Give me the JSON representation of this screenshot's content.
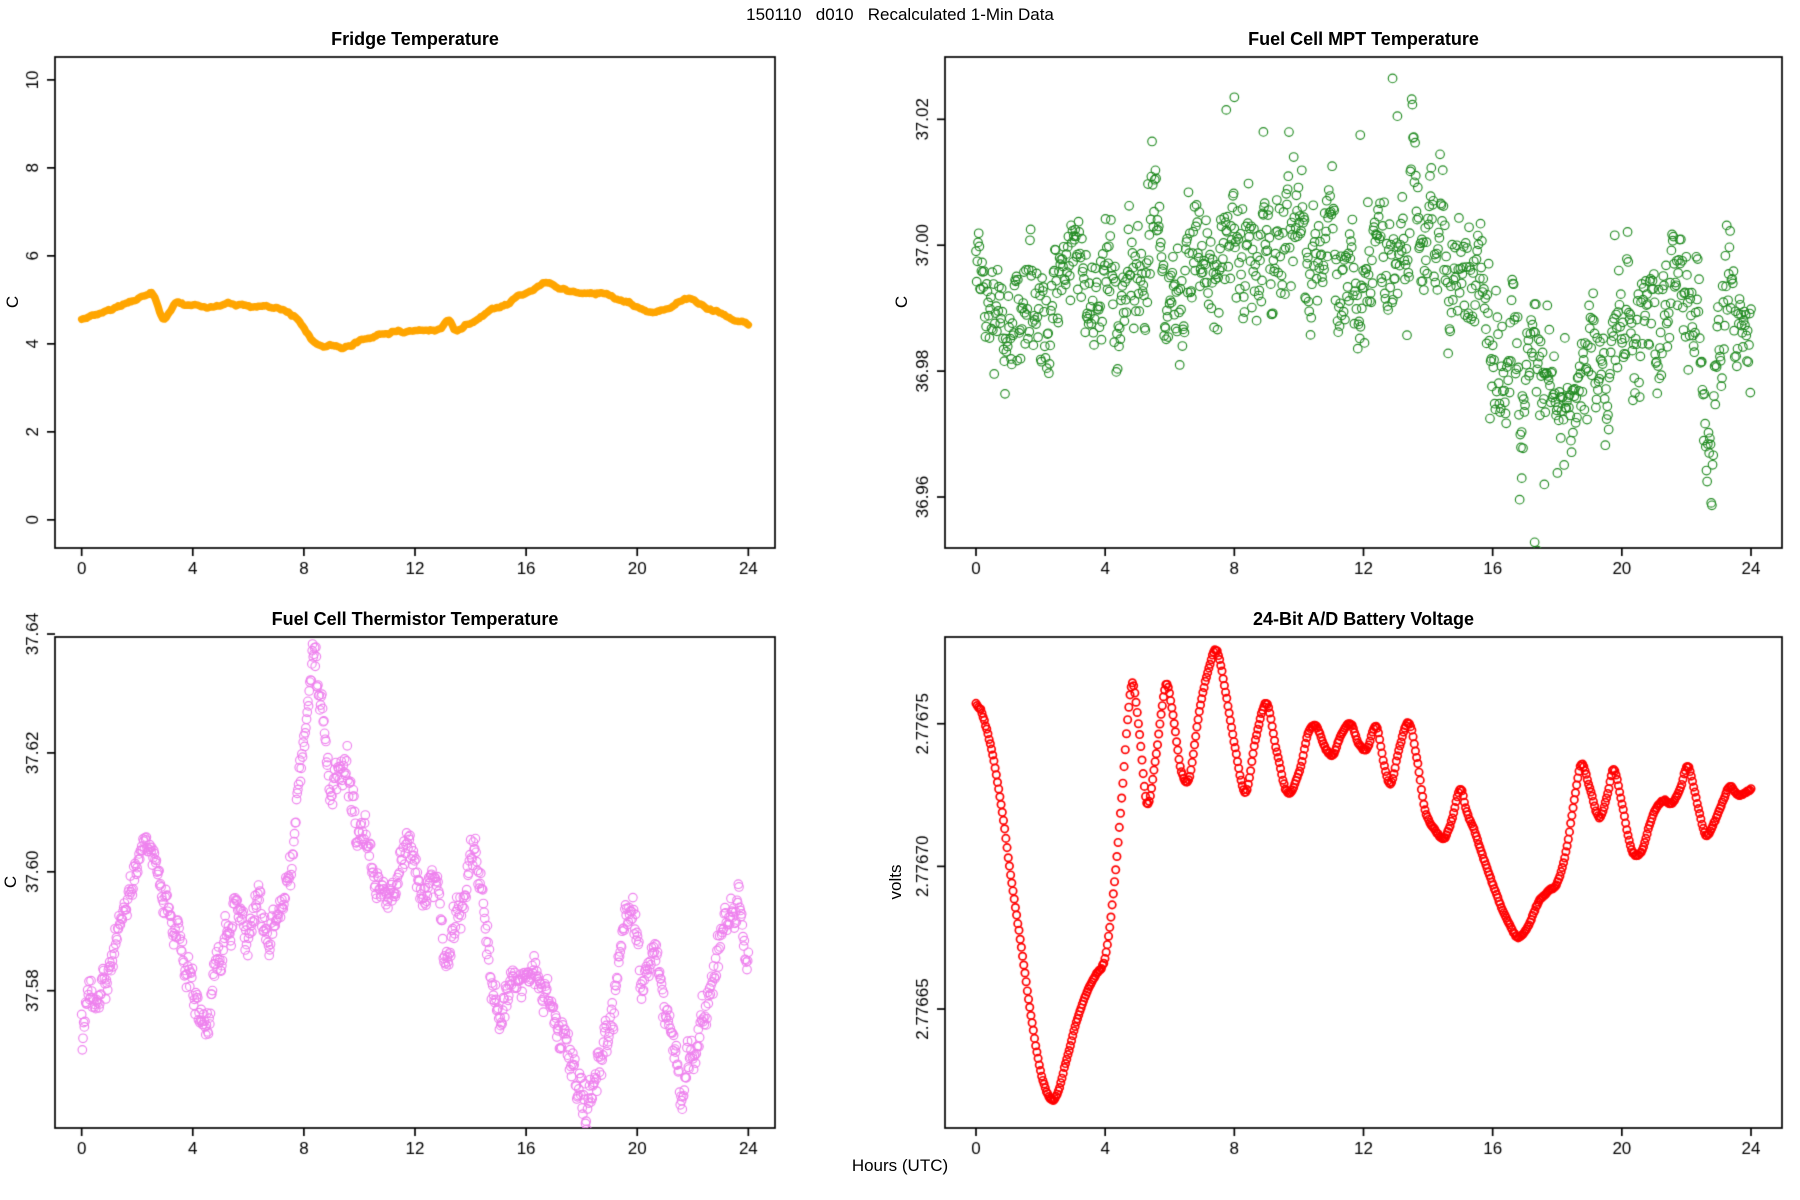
{
  "page": {
    "main_title": "150110   d010   Recalculated 1-Min Data",
    "xlabel_shared": "Hours (UTC)",
    "background": "#ffffff",
    "axis_color": "#000000"
  },
  "chart_data": [
    {
      "type": "line",
      "title": "Fridge Temperature",
      "ylabel": "C",
      "xlabel": "",
      "color": "#FFA500",
      "line_width": 7.5,
      "xlim": [
        -0.96,
        24.96
      ],
      "ylim": [
        -0.64,
        10.52
      ],
      "xticks": [
        0,
        4,
        8,
        12,
        16,
        20,
        24
      ],
      "xtick_labels": [
        "0",
        "4",
        "8",
        "12",
        "16",
        "20",
        "24"
      ],
      "yticks": [
        0,
        2,
        4,
        6,
        8,
        10
      ],
      "ytick_labels": [
        "0",
        "2",
        "4",
        "6",
        "8",
        "10"
      ],
      "n_points": 420,
      "noise": {
        "white": 0.0,
        "ar": 0.015,
        "phi": 0.95
      },
      "anchors": [
        [
          0,
          4.55
        ],
        [
          0.5,
          4.64
        ],
        [
          1,
          4.77
        ],
        [
          1.5,
          4.9
        ],
        [
          2,
          5.07
        ],
        [
          2.3,
          5.17
        ],
        [
          2.6,
          5.12
        ],
        [
          2.9,
          4.58
        ],
        [
          3.15,
          4.68
        ],
        [
          3.4,
          4.95
        ],
        [
          3.7,
          4.85
        ],
        [
          4,
          4.9
        ],
        [
          4.4,
          4.88
        ],
        [
          5,
          4.86
        ],
        [
          5.5,
          4.84
        ],
        [
          6,
          4.82
        ],
        [
          6.5,
          4.8
        ],
        [
          7,
          4.77
        ],
        [
          7.3,
          4.73
        ],
        [
          7.8,
          4.5
        ],
        [
          8.2,
          4.12
        ],
        [
          8.6,
          3.96
        ],
        [
          9,
          3.91
        ],
        [
          9.4,
          3.92
        ],
        [
          9.8,
          3.96
        ],
        [
          10.2,
          4.03
        ],
        [
          10.7,
          4.12
        ],
        [
          11.1,
          4.21
        ],
        [
          11.5,
          4.26
        ],
        [
          12,
          4.22
        ],
        [
          12.5,
          4.21
        ],
        [
          12.9,
          4.26
        ],
        [
          13.2,
          4.43
        ],
        [
          13.45,
          4.27
        ],
        [
          13.7,
          4.38
        ],
        [
          14,
          4.49
        ],
        [
          14.5,
          4.65
        ],
        [
          15,
          4.83
        ],
        [
          15.5,
          5.0
        ],
        [
          16,
          5.15
        ],
        [
          16.5,
          5.31
        ],
        [
          16.8,
          5.33
        ],
        [
          17.2,
          5.28
        ],
        [
          17.8,
          5.23
        ],
        [
          18.4,
          5.18
        ],
        [
          19,
          5.09
        ],
        [
          19.5,
          4.99
        ],
        [
          20,
          4.86
        ],
        [
          20.4,
          4.77
        ],
        [
          20.8,
          4.78
        ],
        [
          21.2,
          4.9
        ],
        [
          21.6,
          4.99
        ],
        [
          21.9,
          5.03
        ],
        [
          22.3,
          4.94
        ],
        [
          22.7,
          4.84
        ],
        [
          23.1,
          4.71
        ],
        [
          23.5,
          4.59
        ],
        [
          24,
          4.42
        ]
      ],
      "outliers": []
    },
    {
      "type": "scatter",
      "title": "Fuel Cell MPT Temperature",
      "ylabel": "C",
      "xlabel": "",
      "color": "#228B22",
      "marker_radius": 4.3,
      "marker_stroke": 1.15,
      "xlim": [
        -0.96,
        24.96
      ],
      "ylim": [
        36.9519,
        37.0299
      ],
      "xticks": [
        0,
        4,
        8,
        12,
        16,
        20,
        24
      ],
      "xtick_labels": [
        "0",
        "4",
        "8",
        "12",
        "16",
        "20",
        "24"
      ],
      "yticks": [
        36.96,
        36.98,
        37.0,
        37.02
      ],
      "ytick_labels": [
        "36.96",
        "36.98",
        "37.00",
        "37.02"
      ],
      "n_points": 1150,
      "noise": {
        "white": 0.0038,
        "ar": 0.0028,
        "phi": 0.88
      },
      "anchors": [
        [
          0,
          36.996
        ],
        [
          0.7,
          36.9945
        ],
        [
          1.5,
          36.9935
        ],
        [
          2.2,
          36.993
        ],
        [
          3,
          36.9945
        ],
        [
          3.7,
          36.9925
        ],
        [
          4.4,
          36.994
        ],
        [
          5,
          36.9965
        ],
        [
          5.5,
          36.999
        ],
        [
          6,
          36.9965
        ],
        [
          6.6,
          36.998
        ],
        [
          7.2,
          37.0005
        ],
        [
          7.8,
          37.0025
        ],
        [
          8.4,
          37.001
        ],
        [
          9,
          37.0015
        ],
        [
          9.6,
          37.0005
        ],
        [
          10.2,
          36.998
        ],
        [
          10.8,
          36.9965
        ],
        [
          11.4,
          36.999
        ],
        [
          12,
          36.9965
        ],
        [
          12.6,
          36.999
        ],
        [
          13.2,
          36.9985
        ],
        [
          13.8,
          36.9955
        ],
        [
          14.4,
          36.9935
        ],
        [
          15,
          36.9925
        ],
        [
          15.6,
          36.9935
        ],
        [
          16.2,
          36.9885
        ],
        [
          16.8,
          36.9835
        ],
        [
          17.4,
          36.978
        ],
        [
          18,
          36.9755
        ],
        [
          18.6,
          36.978
        ],
        [
          19.2,
          36.9865
        ],
        [
          19.8,
          36.9885
        ],
        [
          20.4,
          36.9835
        ],
        [
          21,
          36.9875
        ],
        [
          21.6,
          36.9915
        ],
        [
          22.2,
          36.979
        ],
        [
          22.8,
          36.9785
        ],
        [
          23.4,
          36.9925
        ],
        [
          24,
          36.9895
        ]
      ],
      "outliers": [
        [
          7.75,
          37.0215
        ],
        [
          8.0,
          37.0235
        ],
        [
          8.9,
          37.018
        ],
        [
          11.9,
          37.0175
        ],
        [
          12.9,
          37.0265
        ],
        [
          13.05,
          37.0205
        ],
        [
          16.9,
          36.963
        ],
        [
          17.3,
          36.9528
        ],
        [
          17.38,
          36.9515
        ],
        [
          17.6,
          36.962
        ]
      ]
    },
    {
      "type": "scatter",
      "title": "Fuel Cell Thermistor Temperature",
      "ylabel": "C",
      "xlabel": "",
      "color": "#EE82EE",
      "marker_radius": 4.3,
      "marker_stroke": 1.15,
      "xlim": [
        -0.96,
        24.96
      ],
      "ylim": [
        37.5569,
        37.6395
      ],
      "xticks": [
        0,
        4,
        8,
        12,
        16,
        20,
        24
      ],
      "xtick_labels": [
        "0",
        "4",
        "8",
        "12",
        "16",
        "20",
        "24"
      ],
      "yticks": [
        37.58,
        37.6,
        37.62,
        37.64
      ],
      "ytick_labels": [
        "37.58",
        "37.60",
        "37.62",
        "37.64"
      ],
      "n_points": 1000,
      "noise": {
        "white": 0.0011,
        "ar": 0.0011,
        "phi": 0.9
      },
      "anchors": [
        [
          0,
          37.5745
        ],
        [
          0.4,
          37.577
        ],
        [
          0.8,
          37.5815
        ],
        [
          1.2,
          37.587
        ],
        [
          1.6,
          37.5935
        ],
        [
          2,
          37.6
        ],
        [
          2.3,
          37.6045
        ],
        [
          2.6,
          37.6035
        ],
        [
          3,
          37.596
        ],
        [
          3.4,
          37.5905
        ],
        [
          3.8,
          37.5855
        ],
        [
          4.2,
          37.5815
        ],
        [
          4.6,
          37.5755
        ],
        [
          5,
          37.5835
        ],
        [
          5.4,
          37.5915
        ],
        [
          5.7,
          37.5945
        ],
        [
          6,
          37.588
        ],
        [
          6.3,
          37.5935
        ],
        [
          6.6,
          37.59
        ],
        [
          7,
          37.5935
        ],
        [
          7.4,
          37.6005
        ],
        [
          7.8,
          37.6125
        ],
        [
          8.1,
          37.625
        ],
        [
          8.35,
          37.6335
        ],
        [
          8.6,
          37.6265
        ],
        [
          8.9,
          37.6145
        ],
        [
          9.2,
          37.6165
        ],
        [
          9.5,
          37.6195
        ],
        [
          9.8,
          37.6125
        ],
        [
          10.1,
          37.607
        ],
        [
          10.5,
          37.6025
        ],
        [
          11,
          37.5975
        ],
        [
          11.5,
          37.603
        ],
        [
          12,
          37.6015
        ],
        [
          12.4,
          37.5985
        ],
        [
          12.8,
          37.5925
        ],
        [
          13.2,
          37.5875
        ],
        [
          13.6,
          37.5915
        ],
        [
          14,
          37.6015
        ],
        [
          14.3,
          37.5985
        ],
        [
          14.7,
          37.5855
        ],
        [
          15,
          37.5775
        ],
        [
          15.4,
          37.5795
        ],
        [
          15.8,
          37.5815
        ],
        [
          16.2,
          37.5835
        ],
        [
          16.6,
          37.5805
        ],
        [
          17,
          37.5745
        ],
        [
          17.4,
          37.5685
        ],
        [
          17.8,
          37.5655
        ],
        [
          18.2,
          37.5625
        ],
        [
          18.6,
          37.5675
        ],
        [
          19,
          37.5735
        ],
        [
          19.4,
          37.5835
        ],
        [
          19.8,
          37.5875
        ],
        [
          20.2,
          37.5825
        ],
        [
          20.6,
          37.5865
        ],
        [
          21,
          37.5775
        ],
        [
          21.4,
          37.5675
        ],
        [
          21.7,
          37.5625
        ],
        [
          22,
          37.568
        ],
        [
          22.4,
          37.5775
        ],
        [
          22.8,
          37.5845
        ],
        [
          23.2,
          37.5925
        ],
        [
          23.6,
          37.5955
        ],
        [
          24,
          37.5885
        ]
      ],
      "outliers": [
        [
          8.3,
          37.6372
        ],
        [
          8.45,
          37.6362
        ]
      ]
    },
    {
      "type": "chain",
      "title": "24-Bit A/D Battery Voltage",
      "ylabel": "volts",
      "xlabel": "",
      "color": "#FF0000",
      "marker_radius": 3.7,
      "marker_stroke": 1.7,
      "xlim": [
        -0.96,
        24.96
      ],
      "ylim": [
        2.7766083,
        2.7767804
      ],
      "xticks": [
        0,
        4,
        8,
        12,
        16,
        20,
        24
      ],
      "xtick_labels": [
        "0",
        "4",
        "8",
        "12",
        "16",
        "20",
        "24"
      ],
      "yticks": [
        2.77665,
        2.7767,
        2.77675
      ],
      "ytick_labels": [
        "2.77665",
        "2.77670",
        "2.77675"
      ],
      "n_points": 650,
      "noise": {
        "white": 1.2e-07,
        "ar": 8e-08,
        "phi": 0.8
      },
      "anchors": [
        [
          0,
          2.776757
        ],
        [
          0.2,
          2.776753
        ],
        [
          0.5,
          2.77674
        ],
        [
          0.8,
          2.77672
        ],
        [
          1.1,
          2.776695
        ],
        [
          1.4,
          2.776672
        ],
        [
          1.7,
          2.776648
        ],
        [
          1.95,
          2.776631
        ],
        [
          2.15,
          2.776622
        ],
        [
          2.35,
          2.776618
        ],
        [
          2.55,
          2.776621
        ],
        [
          2.8,
          2.776632
        ],
        [
          3.1,
          2.776645
        ],
        [
          3.4,
          2.776655
        ],
        [
          3.7,
          2.776662
        ],
        [
          4,
          2.776668
        ],
        [
          4.25,
          2.77669
        ],
        [
          4.5,
          2.776722
        ],
        [
          4.7,
          2.776752
        ],
        [
          4.85,
          2.776764
        ],
        [
          5.05,
          2.776748
        ],
        [
          5.3,
          2.776722
        ],
        [
          5.55,
          2.776737
        ],
        [
          5.75,
          2.776755
        ],
        [
          5.9,
          2.776764
        ],
        [
          6.1,
          2.776753
        ],
        [
          6.35,
          2.776734
        ],
        [
          6.6,
          2.776731
        ],
        [
          6.9,
          2.776753
        ],
        [
          7.2,
          2.776769
        ],
        [
          7.45,
          2.776776
        ],
        [
          7.7,
          2.776763
        ],
        [
          8,
          2.776743
        ],
        [
          8.35,
          2.776726
        ],
        [
          8.65,
          2.776744
        ],
        [
          9,
          2.776757
        ],
        [
          9.3,
          2.776741
        ],
        [
          9.65,
          2.776726
        ],
        [
          10,
          2.776733
        ],
        [
          10.3,
          2.776747
        ],
        [
          10.55,
          2.776749
        ],
        [
          10.8,
          2.776742
        ],
        [
          11.05,
          2.776739
        ],
        [
          11.3,
          2.776746
        ],
        [
          11.6,
          2.77675
        ],
        [
          11.85,
          2.776743
        ],
        [
          12.1,
          2.776741
        ],
        [
          12.4,
          2.776749
        ],
        [
          12.65,
          2.776735
        ],
        [
          12.85,
          2.776729
        ],
        [
          13.1,
          2.776741
        ],
        [
          13.4,
          2.77675
        ],
        [
          13.65,
          2.776738
        ],
        [
          13.9,
          2.77672
        ],
        [
          14.2,
          2.776713
        ],
        [
          14.5,
          2.77671
        ],
        [
          14.75,
          2.776717
        ],
        [
          15,
          2.776727
        ],
        [
          15.2,
          2.776719
        ],
        [
          15.45,
          2.776712
        ],
        [
          15.75,
          2.776702
        ],
        [
          16,
          2.776694
        ],
        [
          16.3,
          2.776685
        ],
        [
          16.6,
          2.776678
        ],
        [
          16.8,
          2.776675
        ],
        [
          17.1,
          2.776679
        ],
        [
          17.4,
          2.776687
        ],
        [
          17.7,
          2.776691
        ],
        [
          18,
          2.776694
        ],
        [
          18.3,
          2.776707
        ],
        [
          18.55,
          2.776725
        ],
        [
          18.75,
          2.776736
        ],
        [
          19,
          2.776728
        ],
        [
          19.3,
          2.776717
        ],
        [
          19.55,
          2.776725
        ],
        [
          19.75,
          2.776734
        ],
        [
          20,
          2.776722
        ],
        [
          20.3,
          2.776706
        ],
        [
          20.6,
          2.776705
        ],
        [
          20.85,
          2.776714
        ],
        [
          21.05,
          2.77672
        ],
        [
          21.3,
          2.776723
        ],
        [
          21.55,
          2.776722
        ],
        [
          21.8,
          2.776727
        ],
        [
          22.05,
          2.776735
        ],
        [
          22.3,
          2.776724
        ],
        [
          22.6,
          2.776711
        ],
        [
          22.85,
          2.776715
        ],
        [
          23.1,
          2.776722
        ],
        [
          23.35,
          2.776728
        ],
        [
          23.6,
          2.776725
        ],
        [
          23.85,
          2.776726
        ],
        [
          24,
          2.776727
        ]
      ],
      "outliers": []
    }
  ]
}
